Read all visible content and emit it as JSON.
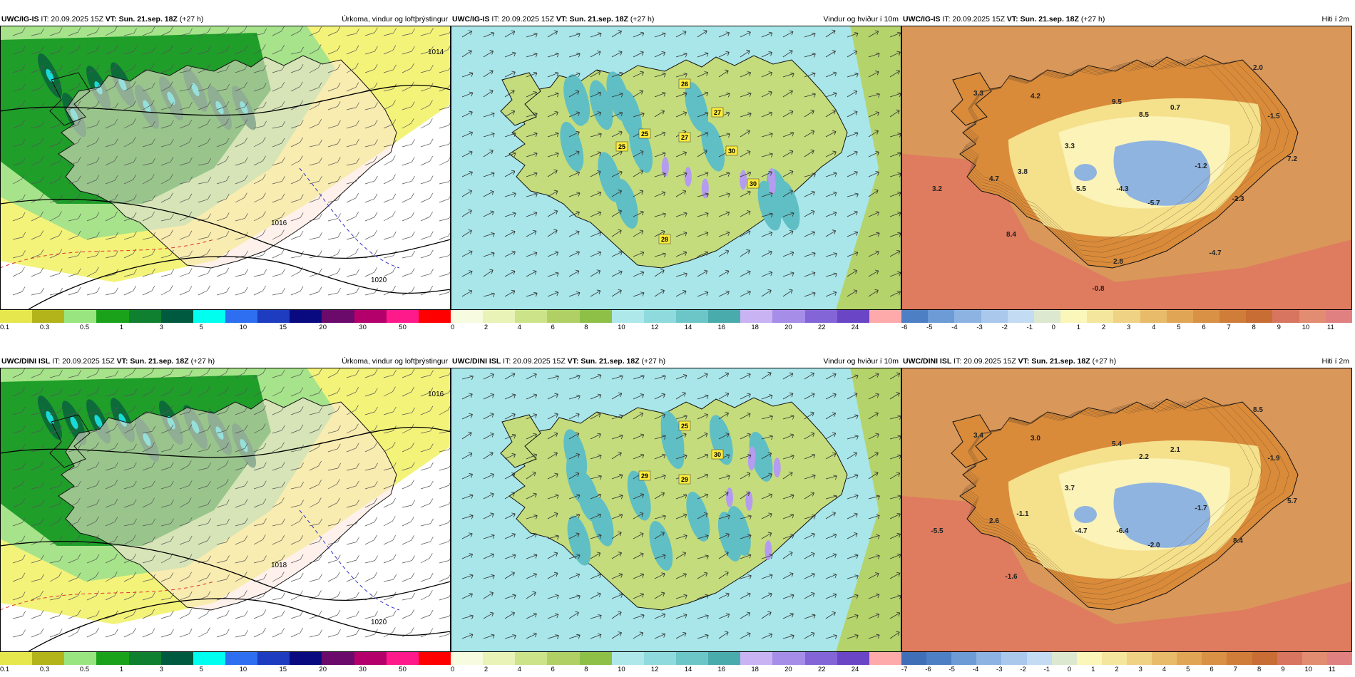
{
  "panels": [
    {
      "model": "UWC/IG-IS",
      "it": "IT: 20.09.2025 15Z",
      "vt_label": "VT:",
      "vt": "Sun. 21.sep. 18Z",
      "lead": "(+27 h)",
      "title": "Úrkoma, vindur og loftþrýstingur",
      "type": "precip",
      "colorbar": {
        "colors": [
          "#e6e64d",
          "#b3b31a",
          "#99e680",
          "#1aa31a",
          "#0f8030",
          "#005a3f",
          "#00ffee",
          "#2d6ff0",
          "#1e3cc0",
          "#0a0a80",
          "#6b0a6b",
          "#b3006b",
          "#ff1a8c",
          "#ff0000"
        ],
        "ticks": [
          "0.1",
          "0.3",
          "0.5",
          "1",
          "3",
          "5",
          "10",
          "15",
          "20",
          "30",
          "50"
        ]
      },
      "isobars": [
        "1014",
        "1016",
        "1020"
      ]
    },
    {
      "model": "UWC/IG-IS",
      "it": "IT: 20.09.2025 15Z",
      "vt_label": "VT:",
      "vt": "Sun. 21.sep. 18Z",
      "lead": "(+27 h)",
      "title": "Vindur og hviður í 10m",
      "type": "wind",
      "colorbar": {
        "colors": [
          "#f7fbe0",
          "#e9f3b7",
          "#cde38a",
          "#b0d066",
          "#8ec048",
          "#aee8ea",
          "#8fdadc",
          "#6cc6c8",
          "#4aabad",
          "#c9b3f3",
          "#a68de8",
          "#8465d8",
          "#6a45c5",
          "#ffaaaa"
        ],
        "ticks": [
          "0",
          "2",
          "4",
          "6",
          "8",
          "10",
          "12",
          "14",
          "16",
          "18",
          "20",
          "22",
          "24"
        ]
      },
      "gusts": [
        "26",
        "27",
        "25",
        "27",
        "25",
        "30",
        "30",
        "28"
      ]
    },
    {
      "model": "UWC/IG-IS",
      "it": "IT: 20.09.2025 15Z",
      "vt_label": "VT:",
      "vt": "Sun. 21.sep. 18Z",
      "lead": "(+27 h)",
      "title": "Hiti í 2m",
      "type": "temp",
      "colorbar": {
        "colors": [
          "#4d7fc4",
          "#6c9bd6",
          "#8db3e2",
          "#a9c8ec",
          "#c3dbf3",
          "#dde8d0",
          "#fbf6b9",
          "#f5e69d",
          "#efd283",
          "#e8bb6a",
          "#e1a655",
          "#d99145",
          "#d07d3a",
          "#c86d33",
          "#d77560",
          "#e28c72",
          "#e08080"
        ],
        "ticks": [
          "-6",
          "-5",
          "-4",
          "-3",
          "-2",
          "-1",
          "0",
          "1",
          "2",
          "3",
          "4",
          "5",
          "6",
          "7",
          "8",
          "9",
          "10",
          "11"
        ]
      },
      "temps": [
        "3.3",
        "4.2",
        "9.5",
        "8.5",
        "0.7",
        "2.0",
        "-1.5",
        "3.3",
        "-1.2",
        "7.2",
        "4.7",
        "3.8",
        "5.5",
        "-4.3",
        "-5.7",
        "-2.3",
        "3.2",
        "8.4",
        "-4.7",
        "2.8",
        "-0.8"
      ]
    },
    {
      "model": "UWC/DINI ISL",
      "it": "IT: 20.09.2025 15Z",
      "vt_label": "VT:",
      "vt": "Sun. 21.sep. 18Z",
      "lead": "(+27 h)",
      "title": "Úrkoma, vindur og loftþrýstingur",
      "type": "precip",
      "colorbar": {
        "colors": [
          "#e6e64d",
          "#b3b31a",
          "#99e680",
          "#1aa31a",
          "#0f8030",
          "#005a3f",
          "#00ffee",
          "#2d6ff0",
          "#1e3cc0",
          "#0a0a80",
          "#6b0a6b",
          "#b3006b",
          "#ff1a8c",
          "#ff0000"
        ],
        "ticks": [
          "0.1",
          "0.3",
          "0.5",
          "1",
          "3",
          "5",
          "10",
          "15",
          "20",
          "30",
          "50"
        ]
      },
      "isobars": [
        "1016",
        "1018",
        "1020"
      ]
    },
    {
      "model": "UWC/DINI ISL",
      "it": "IT: 20.09.2025 15Z",
      "vt_label": "VT:",
      "vt": "Sun. 21.sep. 18Z",
      "lead": "(+27 h)",
      "title": "Vindur og hviður í 10m",
      "type": "wind",
      "colorbar": {
        "colors": [
          "#f7fbe0",
          "#e9f3b7",
          "#cde38a",
          "#b0d066",
          "#8ec048",
          "#aee8ea",
          "#8fdadc",
          "#6cc6c8",
          "#4aabad",
          "#c9b3f3",
          "#a68de8",
          "#8465d8",
          "#6a45c5",
          "#ffaaaa"
        ],
        "ticks": [
          "0",
          "2",
          "4",
          "6",
          "8",
          "10",
          "12",
          "14",
          "16",
          "18",
          "20",
          "22",
          "24"
        ]
      },
      "gusts": [
        "25",
        "30",
        "29",
        "29"
      ]
    },
    {
      "model": "UWC/DINI ISL",
      "it": "IT: 20.09.2025 15Z",
      "vt_label": "VT:",
      "vt": "Sun. 21.sep. 18Z",
      "lead": "(+27 h)",
      "title": "Hiti í 2m",
      "type": "temp",
      "colorbar": {
        "colors": [
          "#3f6fb6",
          "#4d7fc4",
          "#6c9bd6",
          "#8db3e2",
          "#a9c8ec",
          "#c3dbf3",
          "#dde8d0",
          "#fbf6b9",
          "#f5e69d",
          "#efd283",
          "#e8bb6a",
          "#e1a655",
          "#d99145",
          "#d07d3a",
          "#c86d33",
          "#d77560",
          "#e28c72",
          "#e08080"
        ],
        "ticks": [
          "-7",
          "-6",
          "-5",
          "-4",
          "-3",
          "-2",
          "-1",
          "0",
          "1",
          "2",
          "3",
          "4",
          "5",
          "6",
          "7",
          "8",
          "9",
          "10",
          "11"
        ]
      },
      "temps": [
        "3.4",
        "3.0",
        "5.4",
        "2.2",
        "2.1",
        "8.5",
        "-1.9",
        "3.7",
        "-1.7",
        "5.7",
        "2.6",
        "-1.1",
        "-4.7",
        "-6.4",
        "-2.0",
        "8.4",
        "-5.5",
        "-1.6"
      ]
    }
  ]
}
